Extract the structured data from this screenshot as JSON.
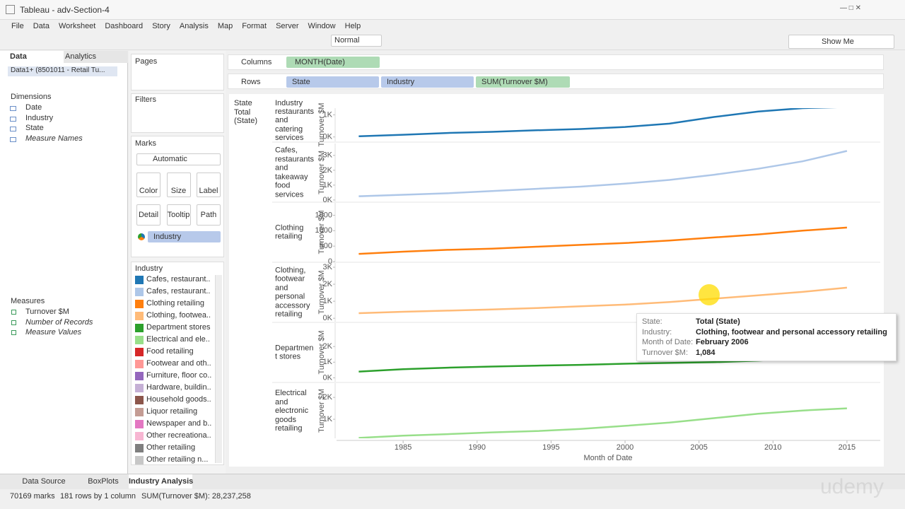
{
  "window_title": "Tableau - adv-Section-4",
  "menu": [
    "File",
    "Data",
    "Worksheet",
    "Dashboard",
    "Story",
    "Analysis",
    "Map",
    "Format",
    "Server",
    "Window",
    "Help"
  ],
  "toolbar": {
    "fit": "Normal",
    "show_me": "Show Me"
  },
  "side_tabs": [
    "Data",
    "Analytics"
  ],
  "datasource": "Data1+ (8501011 - Retail Tu...",
  "dimensions": {
    "title": "Dimensions",
    "items": [
      "Date",
      "Industry",
      "State",
      "Measure Names"
    ]
  },
  "measures": {
    "title": "Measures",
    "items": [
      "Turnover $M",
      "Number of Records",
      "Measure Values"
    ]
  },
  "pages": "Pages",
  "filters": "Filters",
  "marks": {
    "title": "Marks",
    "type": "Automatic",
    "buttons": [
      "Color",
      "Size",
      "Label",
      "Detail",
      "Tooltip",
      "Path"
    ],
    "color_field": "Industry"
  },
  "legend": {
    "title": "Industry",
    "items": [
      {
        "name": "Cafes, restaurant..",
        "color": "#1f77b4"
      },
      {
        "name": "Cafes, restaurant..",
        "color": "#aec7e8"
      },
      {
        "name": "Clothing retailing",
        "color": "#ff7f0e"
      },
      {
        "name": "Clothing, footwea..",
        "color": "#ffbb78"
      },
      {
        "name": "Department stores",
        "color": "#2ca02c"
      },
      {
        "name": "Electrical and ele..",
        "color": "#98df8a"
      },
      {
        "name": "Food retailing",
        "color": "#d62728"
      },
      {
        "name": "Footwear and oth..",
        "color": "#ff9896"
      },
      {
        "name": "Furniture, floor co..",
        "color": "#9467bd"
      },
      {
        "name": "Hardware, buildin..",
        "color": "#c5b0d5"
      },
      {
        "name": "Household goods..",
        "color": "#8c564b"
      },
      {
        "name": "Liquor retailing",
        "color": "#c49c94"
      },
      {
        "name": "Newspaper and b..",
        "color": "#e377c2"
      },
      {
        "name": "Other recreationa..",
        "color": "#f7b6d2"
      },
      {
        "name": "Other retailing",
        "color": "#7f7f7f"
      },
      {
        "name": "Other retailing n...",
        "color": "#c7c7c7"
      }
    ]
  },
  "shelves": {
    "columns_label": "Columns",
    "columns": [
      "MONTH(Date)"
    ],
    "rows_label": "Rows",
    "rows": [
      "State",
      "Industry",
      "SUM(Turnover $M)"
    ]
  },
  "view_headers": {
    "state": "State",
    "state_value": "Total (State)",
    "industry": "Industry"
  },
  "x_axis": {
    "label": "Month of Date",
    "ticks": [
      1985,
      1990,
      1995,
      2000,
      2005,
      2010,
      2015
    ]
  },
  "chart_data": [
    {
      "type": "line",
      "y_label": "Turnover $M",
      "xlim": [
        1980.5,
        2017.25
      ],
      "ylim": [
        -200,
        1300
      ],
      "yticks": [
        {
          "value": 0,
          "label": "0K"
        },
        {
          "value": 1000,
          "label": "1K"
        }
      ],
      "x": [
        1982,
        1985,
        1988,
        1991,
        1994,
        1997,
        2000,
        2003,
        2006,
        2009,
        2012,
        2015
      ],
      "series": [
        {
          "name": "restaurants and catering services",
          "color": "#1f77b4",
          "values": [
            30,
            100,
            180,
            230,
            300,
            360,
            450,
            600,
            900,
            1150,
            1300,
            1350
          ]
        }
      ]
    },
    {
      "type": "line",
      "y_label": "Turnover $M",
      "xlim": [
        1980.5,
        2017.25
      ],
      "ylim": [
        -100,
        3800
      ],
      "yticks": [
        {
          "value": 0,
          "label": "0K"
        },
        {
          "value": 1000,
          "label": "1K"
        },
        {
          "value": 2000,
          "label": "2K"
        },
        {
          "value": 3000,
          "label": "3K"
        }
      ],
      "x": [
        1982,
        1985,
        1988,
        1991,
        1994,
        1997,
        2000,
        2003,
        2006,
        2009,
        2012,
        2015
      ],
      "series": [
        {
          "name": "Cafes, restaurants and takeaway food services",
          "color": "#aec7e8",
          "values": [
            250,
            350,
            450,
            600,
            750,
            900,
            1100,
            1350,
            1700,
            2100,
            2600,
            3300
          ]
        }
      ]
    },
    {
      "type": "line",
      "y_label": "Turnover $M",
      "xlim": [
        1980.5,
        2017.25
      ],
      "ylim": [
        0,
        1900
      ],
      "yticks": [
        0,
        500,
        1000,
        1500
      ],
      "x": [
        1982,
        1985,
        1988,
        1991,
        1994,
        1997,
        2000,
        2003,
        2006,
        2009,
        2012,
        2015
      ],
      "series": [
        {
          "name": "Clothing retailing",
          "color": "#ff7f0e",
          "values": [
            250,
            320,
            380,
            420,
            480,
            540,
            600,
            680,
            780,
            880,
            1000,
            1100
          ]
        }
      ]
    },
    {
      "type": "line",
      "y_label": "Turnover $M",
      "xlim": [
        1980.5,
        2017.25
      ],
      "ylim": [
        -200,
        3250
      ],
      "yticks": [
        {
          "value": 0,
          "label": "0K"
        },
        {
          "value": 1000,
          "label": "1K"
        },
        {
          "value": 2000,
          "label": "2K"
        },
        {
          "value": 3000,
          "label": "3K"
        }
      ],
      "x": [
        1982,
        1985,
        1988,
        1991,
        1994,
        1997,
        2000,
        2003,
        2006,
        2009,
        2012,
        2015
      ],
      "series": [
        {
          "name": "Clothing, footwear and personal accessory retailing",
          "color": "#ffbb78",
          "values": [
            300,
            380,
            450,
            520,
            600,
            700,
            800,
            950,
            1150,
            1350,
            1550,
            1800
          ]
        }
      ]
    },
    {
      "type": "line",
      "y_label": "Turnover $M",
      "xlim": [
        1980.5,
        2017.25
      ],
      "ylim": [
        -250,
        3500
      ],
      "yticks": [
        {
          "value": 0,
          "label": "0K"
        },
        {
          "value": 1000,
          "label": "1K"
        },
        {
          "value": 2000,
          "label": "2K"
        }
      ],
      "x": [
        1982,
        1985,
        1988,
        1991,
        1994,
        1997,
        2000,
        2003,
        2006,
        2009,
        2012,
        2015
      ],
      "series": [
        {
          "name": "Departmen t stores",
          "color": "#2ca02c",
          "values": [
            400,
            550,
            650,
            720,
            780,
            830,
            900,
            950,
            1000,
            1100,
            1250,
            1350
          ]
        }
      ]
    },
    {
      "type": "line",
      "y_label": "Turnover $M",
      "xlim": [
        1980.5,
        2017.25
      ],
      "ylim": [
        130,
        2650
      ],
      "yticks": [
        {
          "value": 1000,
          "label": "1K"
        },
        {
          "value": 2000,
          "label": "2K"
        }
      ],
      "x": [
        1982,
        1985,
        1988,
        1991,
        1994,
        1997,
        2000,
        2003,
        2006,
        2009,
        2012,
        2015
      ],
      "series": [
        {
          "name": "Electrical and electronic goods retailing",
          "color": "#98df8a",
          "values": [
            150,
            250,
            320,
            400,
            460,
            560,
            700,
            850,
            1050,
            1250,
            1400,
            1500
          ]
        }
      ]
    }
  ],
  "tooltip": [
    {
      "label": "State:",
      "value": "Total (State)"
    },
    {
      "label": "Industry:",
      "value": "Clothing, footwear and personal accessory retailing"
    },
    {
      "label": "Month of Date:",
      "value": "February 2006"
    },
    {
      "label": "Turnover $M:",
      "value": "1,084"
    }
  ],
  "sheet_tabs": [
    "Data Source",
    "BoxPlots",
    "Industry Analysis"
  ],
  "status": [
    "70169 marks",
    "181 rows by 1 column",
    "SUM(Turnover $M): 28,237,258"
  ],
  "watermark": "udemy"
}
